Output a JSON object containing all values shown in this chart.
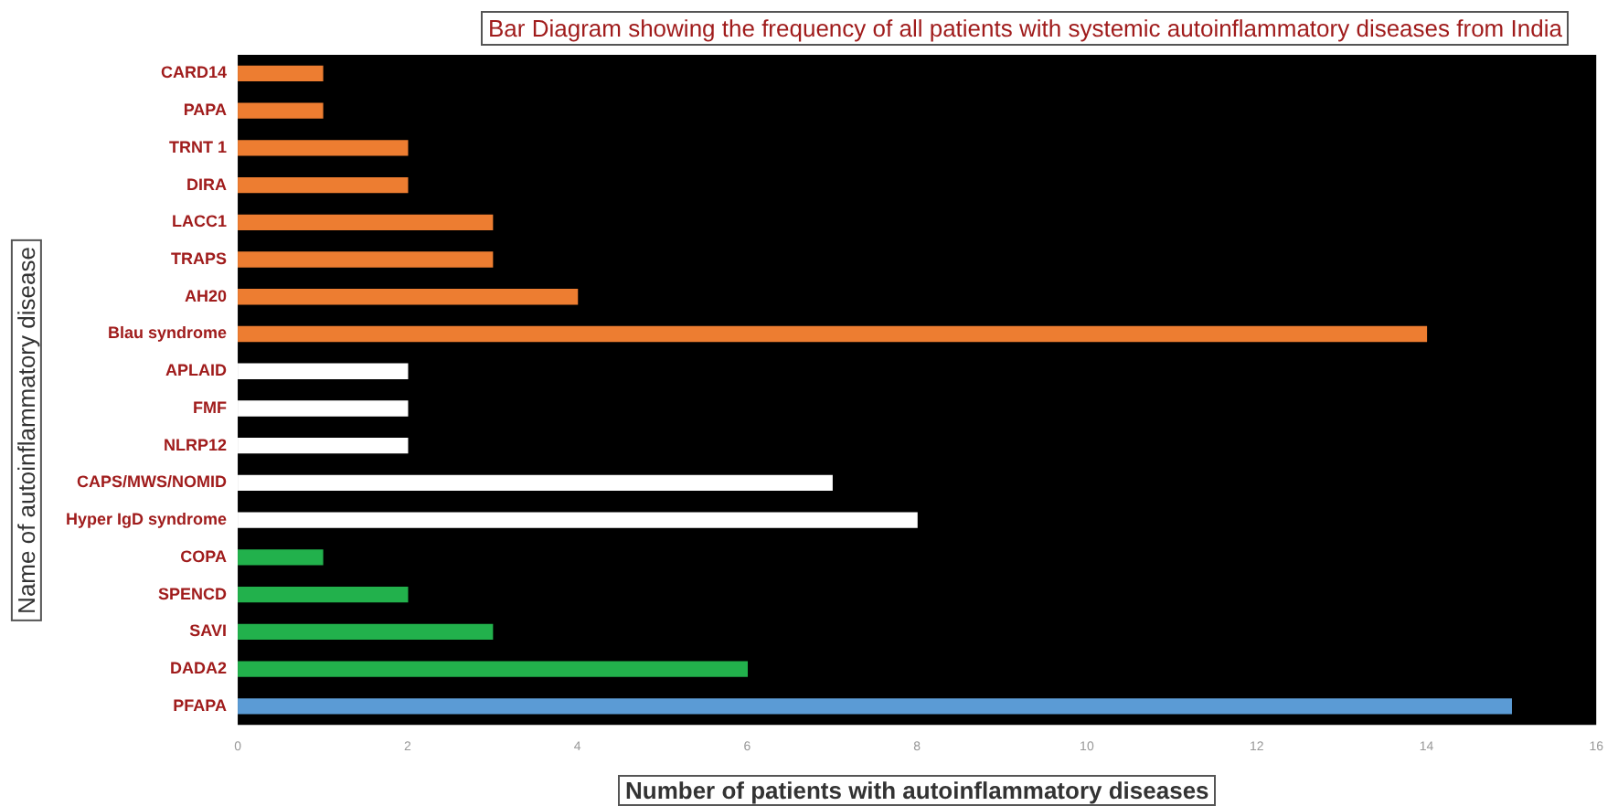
{
  "chart_data": {
    "type": "bar",
    "orientation": "horizontal",
    "title": "Bar Diagram showing the frequency of all patients with systemic autoinflammatory diseases from India",
    "xlabel": "Number of patients with  autoinflammatory diseases",
    "ylabel": "Name of autoinflammatory disease",
    "categories": [
      "CARD14",
      "PAPA",
      "TRNT 1",
      "DIRA",
      "LACC1",
      "TRAPS",
      "AH20",
      "Blau syndrome",
      "APLAID",
      "FMF",
      "NLRP12",
      "CAPS/MWS/NOMID",
      "Hyper IgD syndrome",
      "COPA",
      "SPENCD",
      "SAVI",
      "DADA2",
      "PFAPA"
    ],
    "values": [
      1,
      1,
      2,
      2,
      3,
      3,
      4,
      14,
      2,
      2,
      2,
      7,
      8,
      1,
      2,
      3,
      6,
      15
    ],
    "colors": [
      "#ed7d31",
      "#ed7d31",
      "#ed7d31",
      "#ed7d31",
      "#ed7d31",
      "#ed7d31",
      "#ed7d31",
      "#ed7d31",
      "#ffffff",
      "#ffffff",
      "#ffffff",
      "#ffffff",
      "#ffffff",
      "#22b14c",
      "#22b14c",
      "#22b14c",
      "#22b14c",
      "#5b9bd5"
    ],
    "xlim": [
      0,
      16
    ],
    "xticks": [
      0,
      2,
      4,
      6,
      8,
      10,
      12,
      14,
      16
    ],
    "grid": false,
    "legend": false
  }
}
